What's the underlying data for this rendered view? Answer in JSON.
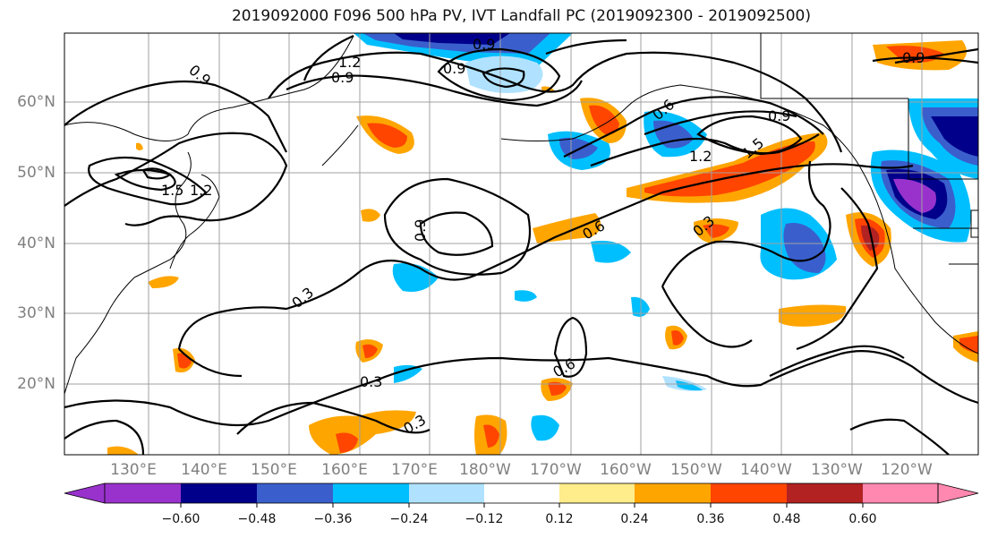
{
  "title": "2019092000 F096 500 hPa PV, IVT Landfall PC (2019092300 - 2019092500)",
  "lat_labels": [
    "60°N",
    "50°N",
    "40°N",
    "30°N",
    "20°N"
  ],
  "lon_labels": [
    "130°E",
    "140°E",
    "150°E",
    "160°E",
    "170°E",
    "180°W",
    "170°W",
    "160°W",
    "150°W",
    "140°W",
    "130°W",
    "120°W"
  ],
  "contour_labels": [
    "0.9",
    "1.2",
    "0.9",
    "0.9",
    "0.9",
    "1.5",
    "1.2",
    "0.6",
    "0.9",
    "1.5",
    "1.2",
    "0.9",
    "0.6",
    "0.3",
    "0.3",
    "0.3",
    "0.6",
    "0.3",
    "0.9"
  ],
  "colorbar": {
    "ticks": [
      "−0.60",
      "−0.48",
      "−0.36",
      "−0.24",
      "−0.12",
      "0.12",
      "0.24",
      "0.36",
      "0.48",
      "0.60"
    ],
    "colors": [
      "#9932cc",
      "#00008b",
      "#3a5fcd",
      "#00bfff",
      "#b0e2ff",
      "#ffffff",
      "#ffec8b",
      "#ffa500",
      "#ff4500",
      "#b22222",
      "#ff88b0"
    ]
  }
}
